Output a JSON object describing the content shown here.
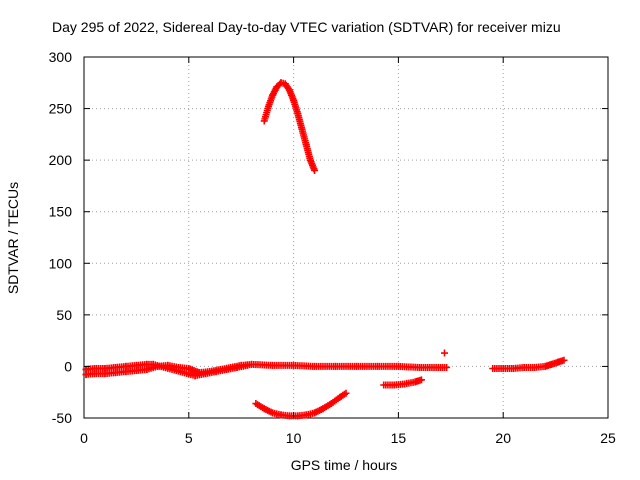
{
  "chart_data": {
    "type": "scatter",
    "title": "Day 295 of 2022, Sidereal Day-to-day VTEC variation (SDTVAR) for receiver mizu",
    "xlabel": "GPS time / hours",
    "ylabel": "SDTVAR / TECUs",
    "xlim": [
      0,
      25
    ],
    "ylim": [
      -50,
      300
    ],
    "xticks": [
      0,
      5,
      10,
      15,
      20,
      25
    ],
    "yticks": [
      -50,
      0,
      50,
      100,
      150,
      200,
      250,
      300
    ],
    "grid": true,
    "series_color": "#ff0000",
    "series": [
      {
        "name": "arc-upper",
        "x": [
          8.6,
          8.8,
          9.0,
          9.2,
          9.4,
          9.6,
          9.8,
          10.0,
          10.2,
          10.4,
          10.6,
          10.8,
          11.0
        ],
        "y": [
          238,
          252,
          263,
          271,
          275,
          274,
          268,
          258,
          245,
          230,
          215,
          200,
          190
        ]
      },
      {
        "name": "arc-lower",
        "x": [
          8.2,
          8.6,
          9.0,
          9.4,
          9.8,
          10.2,
          10.6,
          11.0,
          11.4,
          11.8,
          12.2,
          12.5
        ],
        "y": [
          -36,
          -41,
          -45,
          -47,
          -48,
          -48,
          -47,
          -45,
          -41,
          -36,
          -30,
          -26
        ]
      },
      {
        "name": "baseline-1",
        "x": [
          0,
          0.5,
          1.0,
          1.5,
          2.0,
          2.5,
          3.0,
          3.5,
          4.0,
          4.5,
          5.0,
          5.5,
          6.0,
          6.5,
          7.0,
          7.5,
          8.0
        ],
        "y": [
          -8,
          -7,
          -7,
          -6,
          -5,
          -4,
          -3,
          0,
          1,
          -1,
          -2,
          -6,
          -5,
          -3,
          -1,
          1,
          2
        ]
      },
      {
        "name": "baseline-1b",
        "x": [
          0,
          0.5,
          1.0,
          1.5,
          2.0,
          2.5,
          3.0,
          3.3,
          5.3,
          5.8,
          6.3,
          6.8,
          7.3,
          7.8
        ],
        "y": [
          -3,
          -2,
          -2,
          -1,
          0,
          1,
          2,
          2,
          -9,
          -7,
          -5,
          -3,
          -1,
          1
        ]
      },
      {
        "name": "baseline-2",
        "x": [
          8.0,
          9.0,
          10.0,
          11.0,
          12.0,
          13.0,
          14.0,
          15.0,
          16.0,
          17.0,
          17.3
        ],
        "y": [
          2,
          1,
          1,
          0,
          0,
          0,
          0,
          0,
          -1,
          -1,
          -1
        ]
      },
      {
        "name": "segment-15",
        "x": [
          14.3,
          14.8,
          15.3,
          15.8,
          16.1
        ],
        "y": [
          -18,
          -18,
          -17,
          -15,
          -13
        ]
      },
      {
        "name": "point-17",
        "x": [
          17.2
        ],
        "y": [
          13
        ]
      },
      {
        "name": "baseline-3",
        "x": [
          19.5,
          20.0,
          20.5,
          21.0,
          21.5,
          22.0,
          22.3,
          22.6,
          22.9
        ],
        "y": [
          -2,
          -2,
          -2,
          -1,
          -1,
          0,
          2,
          4,
          6
        ]
      }
    ]
  }
}
